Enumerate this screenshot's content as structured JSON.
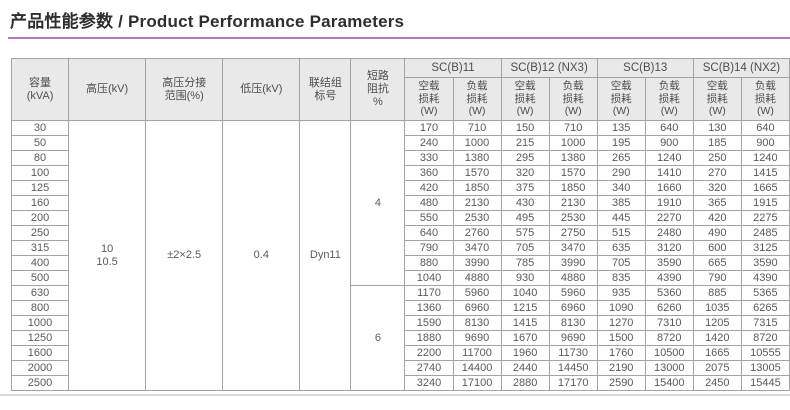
{
  "page_title": "产品性能参数 / Product Performance Parameters",
  "theme": {
    "accent_color": "#b279b8",
    "header_bg": "#e9e9e9",
    "border_color": "#a3a3a3",
    "text_color": "#5a5a5a",
    "title_color": "#2e2e2e"
  },
  "table": {
    "param_headers": [
      "容量\n(kVA)",
      "高压(kV)",
      "高压分接\n范围(%)",
      "低压(kV)",
      "联结组\n标号",
      "短路\n阻抗\n%"
    ],
    "model_groups": [
      "SC(B)11",
      "SC(B)12 (NX3)",
      "SC(B)13",
      "SC(B)14 (NX2)"
    ],
    "loss_headers": {
      "no_load": "空载\n损耗\n(W)",
      "load": "负载\n损耗\n(W)"
    },
    "shared_values": {
      "hv_kv": "10\n10.5",
      "tap_range": "±2×2.5",
      "lv_kv": "0.4",
      "vector_group": "Dyn11"
    },
    "impedance_groups": [
      {
        "value": "4",
        "row_span": 11
      },
      {
        "value": "6",
        "row_span": 7
      }
    ],
    "rows": [
      {
        "kva": "30",
        "losses": [
          "170",
          "710",
          "150",
          "710",
          "135",
          "640",
          "130",
          "640"
        ]
      },
      {
        "kva": "50",
        "losses": [
          "240",
          "1000",
          "215",
          "1000",
          "195",
          "900",
          "185",
          "900"
        ]
      },
      {
        "kva": "80",
        "losses": [
          "330",
          "1380",
          "295",
          "1380",
          "265",
          "1240",
          "250",
          "1240"
        ]
      },
      {
        "kva": "100",
        "losses": [
          "360",
          "1570",
          "320",
          "1570",
          "290",
          "1410",
          "270",
          "1415"
        ]
      },
      {
        "kva": "125",
        "losses": [
          "420",
          "1850",
          "375",
          "1850",
          "340",
          "1660",
          "320",
          "1665"
        ]
      },
      {
        "kva": "160",
        "losses": [
          "480",
          "2130",
          "430",
          "2130",
          "385",
          "1910",
          "365",
          "1915"
        ]
      },
      {
        "kva": "200",
        "losses": [
          "550",
          "2530",
          "495",
          "2530",
          "445",
          "2270",
          "420",
          "2275"
        ]
      },
      {
        "kva": "250",
        "losses": [
          "640",
          "2760",
          "575",
          "2750",
          "515",
          "2480",
          "490",
          "2485"
        ]
      },
      {
        "kva": "315",
        "losses": [
          "790",
          "3470",
          "705",
          "3470",
          "635",
          "3120",
          "600",
          "3125"
        ]
      },
      {
        "kva": "400",
        "losses": [
          "880",
          "3990",
          "785",
          "3990",
          "705",
          "3590",
          "665",
          "3590"
        ]
      },
      {
        "kva": "500",
        "losses": [
          "1040",
          "4880",
          "930",
          "4880",
          "835",
          "4390",
          "790",
          "4390"
        ]
      },
      {
        "kva": "630",
        "losses": [
          "1170",
          "5960",
          "1040",
          "5960",
          "935",
          "5360",
          "885",
          "5365"
        ]
      },
      {
        "kva": "800",
        "losses": [
          "1360",
          "6960",
          "1215",
          "6960",
          "1090",
          "6260",
          "1035",
          "6265"
        ]
      },
      {
        "kva": "1000",
        "losses": [
          "1590",
          "8130",
          "1415",
          "8130",
          "1270",
          "7310",
          "1205",
          "7315"
        ]
      },
      {
        "kva": "1250",
        "losses": [
          "1880",
          "9690",
          "1670",
          "9690",
          "1500",
          "8720",
          "1420",
          "8720"
        ]
      },
      {
        "kva": "1600",
        "losses": [
          "2200",
          "11700",
          "1960",
          "11730",
          "1760",
          "10500",
          "1665",
          "10555"
        ]
      },
      {
        "kva": "2000",
        "losses": [
          "2740",
          "14400",
          "2440",
          "14450",
          "2190",
          "13000",
          "2075",
          "13005"
        ]
      },
      {
        "kva": "2500",
        "losses": [
          "3240",
          "17100",
          "2880",
          "17170",
          "2590",
          "15400",
          "2450",
          "15445"
        ]
      }
    ]
  }
}
